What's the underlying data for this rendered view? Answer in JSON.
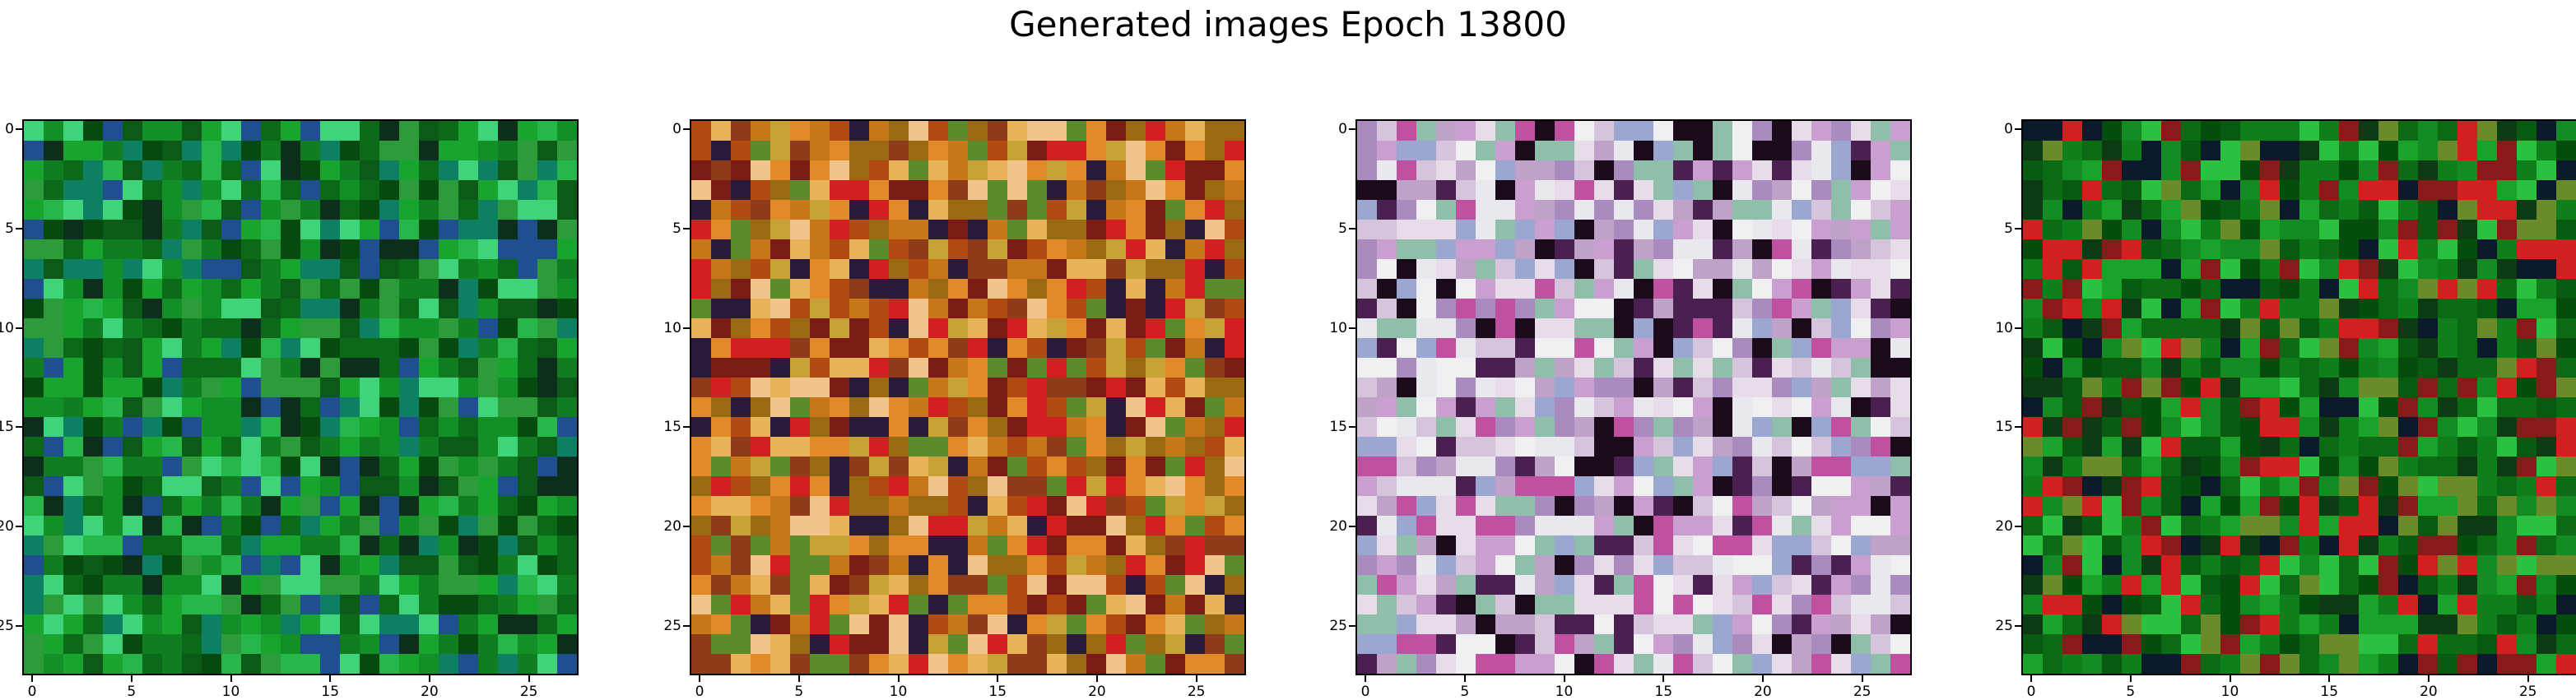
{
  "figure": {
    "title": "Generated images Epoch 13800",
    "grid_size": 28,
    "x_ticks": [
      "0",
      "5",
      "10",
      "15",
      "20",
      "25"
    ],
    "y_ticks": [
      "0",
      "5",
      "10",
      "15",
      "20",
      "25"
    ]
  },
  "panels": [
    {
      "palette": [
        "#0a6a1a",
        "#0f7d20",
        "#138f27",
        "#0b5a17",
        "#064a10",
        "#19a32f",
        "#26b64a",
        "#0d7f62",
        "#3fd37a",
        "#1f4f8f",
        "#0b2f1a",
        "#2c9c3a"
      ],
      "description": "green noise"
    },
    {
      "palette": [
        "#b04a10",
        "#c8761a",
        "#9a6a12",
        "#e08a2a",
        "#7a1c14",
        "#d21f1f",
        "#2a1a3a",
        "#c7a236",
        "#e7b45a",
        "#8e3b1a",
        "#f0c48a",
        "#5b8b2a"
      ],
      "description": "orange noise"
    },
    {
      "palette": [
        "#e7dde9",
        "#d6c4dd",
        "#c89fcf",
        "#a98bbf",
        "#e8e8ee",
        "#bfa2c7",
        "#9ba7d1",
        "#4a2050",
        "#1a0a1a",
        "#c050a0",
        "#8fbfaa",
        "#f0f0f2"
      ],
      "description": "lavender noise"
    },
    {
      "palette": [
        "#0b6a14",
        "#0f7f1c",
        "#138a22",
        "#075a10",
        "#054d0c",
        "#1aa32a",
        "#0c3a12",
        "#0a1a2a",
        "#8a1a1a",
        "#d02020",
        "#6b8a2a",
        "#2cc040"
      ],
      "description": "green noise 2"
    }
  ]
}
